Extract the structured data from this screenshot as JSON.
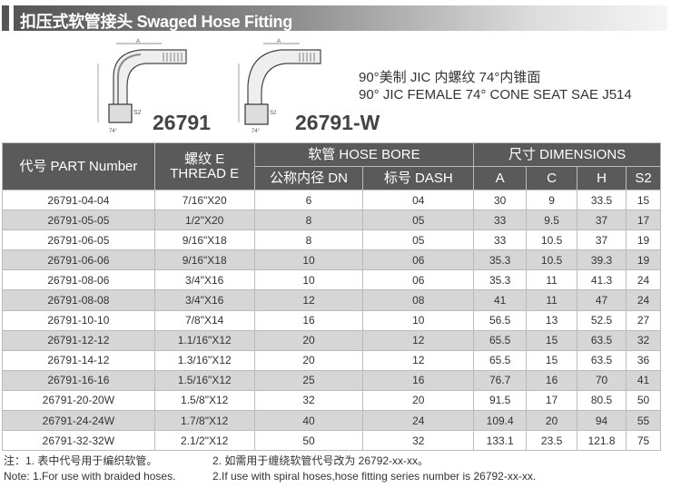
{
  "header": {
    "title": "扣压式软管接头  Swaged Hose Fitting"
  },
  "models": [
    "26791",
    "26791-W"
  ],
  "description": {
    "cn": "90°美制 JIC 内螺纹 74°内锥面",
    "en": "90° JIC FEMALE 74° CONE SEAT SAE J514"
  },
  "table": {
    "headers": {
      "part": "代号 PART Number",
      "thread_cn": "螺纹 E",
      "thread_en": "THREAD E",
      "hose_bore": "软管 HOSE BORE",
      "dn": "公称内径 DN",
      "dash": "标号 DASH",
      "dimensions": "尺寸 DIMENSIONS",
      "a": "A",
      "c": "C",
      "h": "H",
      "s2": "S2"
    },
    "rows": [
      [
        "26791-04-04",
        "7/16\"X20",
        "6",
        "04",
        "30",
        "9",
        "33.5",
        "15"
      ],
      [
        "26791-05-05",
        "1/2\"X20",
        "8",
        "05",
        "33",
        "9.5",
        "37",
        "17"
      ],
      [
        "26791-06-05",
        "9/16\"X18",
        "8",
        "05",
        "33",
        "10.5",
        "37",
        "19"
      ],
      [
        "26791-06-06",
        "9/16\"X18",
        "10",
        "06",
        "35.3",
        "10.5",
        "39.3",
        "19"
      ],
      [
        "26791-08-06",
        "3/4\"X16",
        "10",
        "06",
        "35.3",
        "11",
        "41.3",
        "24"
      ],
      [
        "26791-08-08",
        "3/4\"X16",
        "12",
        "08",
        "41",
        "11",
        "47",
        "24"
      ],
      [
        "26791-10-10",
        "7/8\"X14",
        "16",
        "10",
        "56.5",
        "13",
        "52.5",
        "27"
      ],
      [
        "26791-12-12",
        "1.1/16\"X12",
        "20",
        "12",
        "65.5",
        "15",
        "63.5",
        "32"
      ],
      [
        "26791-14-12",
        "1.3/16\"X12",
        "20",
        "12",
        "65.5",
        "15",
        "63.5",
        "36"
      ],
      [
        "26791-16-16",
        "1.5/16\"X12",
        "25",
        "16",
        "76.7",
        "16",
        "70",
        "41"
      ],
      [
        "26791-20-20W",
        "1.5/8\"X12",
        "32",
        "20",
        "91.5",
        "17",
        "80.5",
        "50"
      ],
      [
        "26791-24-24W",
        "1.7/8\"X12",
        "40",
        "24",
        "109.4",
        "20",
        "94",
        "55"
      ],
      [
        "26791-32-32W",
        "2.1/2\"X12",
        "50",
        "32",
        "133.1",
        "23.5",
        "121.8",
        "75"
      ]
    ]
  },
  "notes": {
    "cn1": "注：1. 表中代号用于编织软管。",
    "cn2": "2. 如需用于缠绕软管代号改为 26792-xx-xx。",
    "en1": "Note: 1.For use with braided hoses.",
    "en2": "2.If use with spiral hoses,hose fitting series number is 26792-xx-xx."
  }
}
